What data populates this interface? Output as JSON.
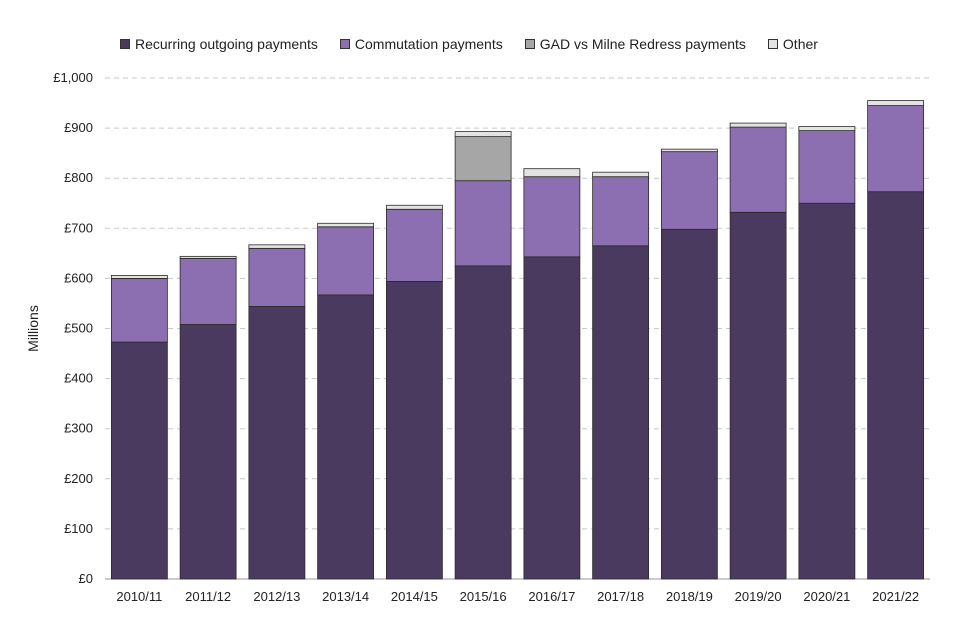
{
  "chart_data": {
    "type": "bar",
    "stacked": true,
    "ylabel": "Millions",
    "ylim": [
      0,
      1000
    ],
    "yticks": [
      0,
      100,
      200,
      300,
      400,
      500,
      600,
      700,
      800,
      900,
      1000
    ],
    "ytick_labels": [
      "£0",
      "£100",
      "£200",
      "£300",
      "£400",
      "£500",
      "£600",
      "£700",
      "£800",
      "£900",
      "£1,000"
    ],
    "grid": "horizontal dashed",
    "legend_position": "top",
    "categories": [
      "2010/11",
      "2011/12",
      "2012/13",
      "2013/14",
      "2014/15",
      "2015/16",
      "2016/17",
      "2017/18",
      "2018/19",
      "2019/20",
      "2020/21",
      "2021/22"
    ],
    "series": [
      {
        "name": "Recurring outgoing payments",
        "color": "#4b3a60",
        "values": [
          473,
          508,
          544,
          567,
          594,
          625,
          643,
          665,
          698,
          732,
          750,
          773
        ]
      },
      {
        "name": "Commutation payments",
        "color": "#8c6fb0",
        "values": [
          127,
          132,
          116,
          136,
          144,
          170,
          160,
          138,
          155,
          170,
          145,
          172
        ]
      },
      {
        "name": "GAD vs Milne Redress payments",
        "color": "#a6a6a6",
        "values": [
          0,
          0,
          0,
          0,
          0,
          88,
          0,
          0,
          0,
          0,
          0,
          0
        ]
      },
      {
        "name": "Other",
        "color": "#e3e3e3",
        "values": [
          6,
          4,
          7,
          7,
          8,
          10,
          16,
          9,
          5,
          8,
          8,
          10
        ]
      }
    ]
  }
}
